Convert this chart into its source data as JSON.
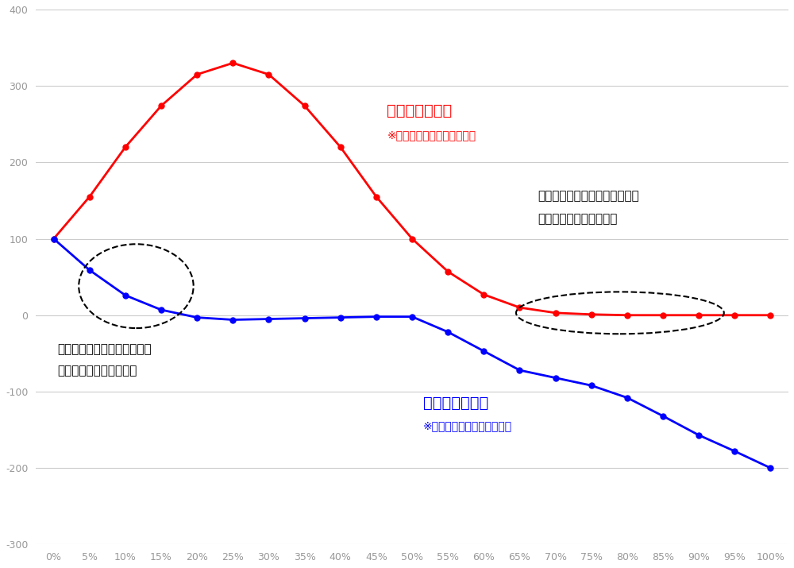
{
  "x_labels": [
    "0%",
    "5%",
    "10%",
    "15%",
    "20%",
    "25%",
    "30%",
    "35%",
    "40%",
    "45%",
    "50%",
    "55%",
    "60%",
    "65%",
    "70%",
    "75%",
    "80%",
    "85%",
    "90%",
    "95%",
    "100%"
  ],
  "x_indices": [
    0,
    1,
    2,
    3,
    4,
    5,
    6,
    7,
    8,
    9,
    10,
    11,
    12,
    13,
    14,
    15,
    16,
    17,
    18,
    19,
    20
  ],
  "red_values": [
    100,
    155,
    220,
    274,
    315,
    330,
    315,
    274,
    220,
    155,
    100,
    57,
    27,
    10,
    3,
    1,
    0,
    0,
    0,
    0,
    0
  ],
  "blue_values": [
    100,
    59,
    26,
    7,
    -3,
    -6,
    -5,
    -4,
    -3,
    -2,
    -2,
    -22,
    -47,
    -72,
    -82,
    -92,
    -108,
    -132,
    -157,
    -178,
    -200
  ],
  "red_color": "#FF0000",
  "blue_color": "#0000FF",
  "annotation_red_title": "表に賓けた場合",
  "annotation_red_sub": "※勝てば２倍　負ければ等倍",
  "annotation_blue_title": "裏に賓けた場合",
  "annotation_blue_sub": "※勝てば等倍　負ければ２倍",
  "annotation_left_line1": "相場を読み間違えていても、",
  "annotation_left_line2": "破産には至っていない。",
  "annotation_right_line1": "相場の方向性を捉えていても、",
  "annotation_right_line2": "破産に追い込まれている",
  "ylim": [
    -300,
    400
  ],
  "yticks": [
    -300,
    -200,
    -100,
    0,
    100,
    200,
    300,
    400
  ],
  "background": "#FFFFFF",
  "marker": "o",
  "markersize": 5,
  "linewidth": 2,
  "grid_color": "#CCCCCC",
  "tick_color": "#999999"
}
